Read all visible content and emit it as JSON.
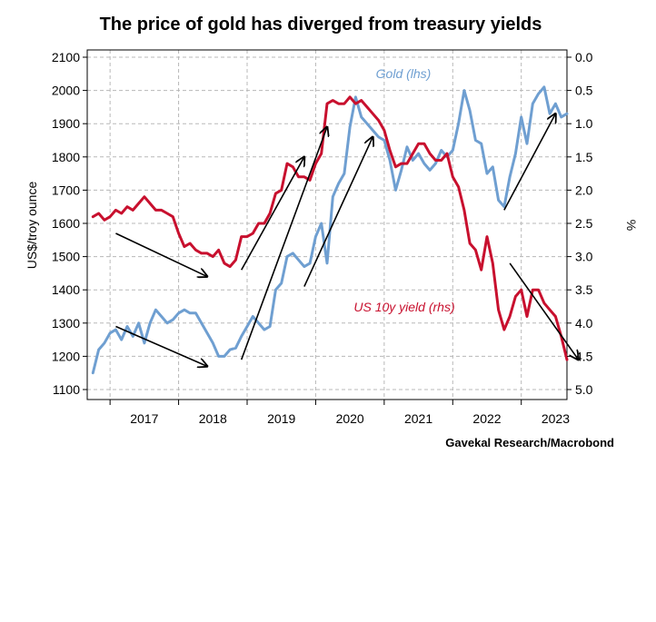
{
  "chart_data": {
    "type": "line",
    "title": "The price of gold has diverged from treasury yields",
    "source": "Gavekal Research/Macrobond",
    "x_ticks": [
      "2017",
      "2018",
      "2019",
      "2020",
      "2021",
      "2022",
      "2023"
    ],
    "x_range": [
      "2016-09",
      "2023-09"
    ],
    "grid": true,
    "y_left": {
      "label": "US$/troy ounce",
      "range": [
        1100,
        2100
      ],
      "ticks": [
        "1100",
        "1200",
        "1300",
        "1400",
        "1500",
        "1600",
        "1700",
        "1800",
        "1900",
        "2000",
        "2100"
      ]
    },
    "y_right": {
      "label": "%",
      "inverted": true,
      "range": [
        0.0,
        5.0
      ],
      "ticks": [
        "0.0",
        "0.5",
        "1.0",
        "1.5",
        "2.0",
        "2.5",
        "3.0",
        "3.5",
        "4.0",
        "4.5",
        "5.0"
      ]
    },
    "series": [
      {
        "name": "Gold (lhs)",
        "axis": "left",
        "color": "#6f9fd1",
        "x": [
          "2016-10",
          "2016-11",
          "2016-12",
          "2017-01",
          "2017-02",
          "2017-03",
          "2017-04",
          "2017-05",
          "2017-06",
          "2017-07",
          "2017-08",
          "2017-09",
          "2017-10",
          "2017-11",
          "2017-12",
          "2018-01",
          "2018-02",
          "2018-03",
          "2018-04",
          "2018-05",
          "2018-06",
          "2018-07",
          "2018-08",
          "2018-09",
          "2018-10",
          "2018-11",
          "2018-12",
          "2019-01",
          "2019-02",
          "2019-03",
          "2019-04",
          "2019-05",
          "2019-06",
          "2019-07",
          "2019-08",
          "2019-09",
          "2019-10",
          "2019-11",
          "2019-12",
          "2020-01",
          "2020-02",
          "2020-03",
          "2020-04",
          "2020-05",
          "2020-06",
          "2020-07",
          "2020-08",
          "2020-09",
          "2020-10",
          "2020-11",
          "2020-12",
          "2021-01",
          "2021-02",
          "2021-03",
          "2021-04",
          "2021-05",
          "2021-06",
          "2021-07",
          "2021-08",
          "2021-09",
          "2021-10",
          "2021-11",
          "2021-12",
          "2022-01",
          "2022-02",
          "2022-03",
          "2022-04",
          "2022-05",
          "2022-06",
          "2022-07",
          "2022-08",
          "2022-09",
          "2022-10",
          "2022-11",
          "2022-12",
          "2023-01",
          "2023-02",
          "2023-03",
          "2023-04",
          "2023-05",
          "2023-06",
          "2023-07",
          "2023-08",
          "2023-09"
        ],
        "values": [
          1150,
          1220,
          1240,
          1270,
          1280,
          1250,
          1290,
          1260,
          1300,
          1240,
          1300,
          1340,
          1320,
          1300,
          1310,
          1330,
          1340,
          1330,
          1330,
          1300,
          1270,
          1240,
          1200,
          1200,
          1220,
          1225,
          1260,
          1290,
          1320,
          1300,
          1280,
          1290,
          1400,
          1420,
          1500,
          1510,
          1490,
          1470,
          1480,
          1560,
          1600,
          1480,
          1680,
          1720,
          1750,
          1890,
          1980,
          1920,
          1900,
          1880,
          1860,
          1850,
          1790,
          1700,
          1760,
          1830,
          1790,
          1810,
          1780,
          1760,
          1780,
          1820,
          1800,
          1820,
          1900,
          2000,
          1940,
          1850,
          1840,
          1750,
          1770,
          1670,
          1650,
          1740,
          1810,
          1920,
          1840,
          1960,
          1990,
          2010,
          1930,
          1960,
          1920,
          1930
        ]
      },
      {
        "name": "US 10y yield (rhs)",
        "axis": "right",
        "color": "#c8102e",
        "x": [
          "2016-10",
          "2016-11",
          "2016-12",
          "2017-01",
          "2017-02",
          "2017-03",
          "2017-04",
          "2017-05",
          "2017-06",
          "2017-07",
          "2017-08",
          "2017-09",
          "2017-10",
          "2017-11",
          "2017-12",
          "2018-01",
          "2018-02",
          "2018-03",
          "2018-04",
          "2018-05",
          "2018-06",
          "2018-07",
          "2018-08",
          "2018-09",
          "2018-10",
          "2018-11",
          "2018-12",
          "2019-01",
          "2019-02",
          "2019-03",
          "2019-04",
          "2019-05",
          "2019-06",
          "2019-07",
          "2019-08",
          "2019-09",
          "2019-10",
          "2019-11",
          "2019-12",
          "2020-01",
          "2020-02",
          "2020-03",
          "2020-04",
          "2020-05",
          "2020-06",
          "2020-07",
          "2020-08",
          "2020-09",
          "2020-10",
          "2020-11",
          "2020-12",
          "2021-01",
          "2021-02",
          "2021-03",
          "2021-04",
          "2021-05",
          "2021-06",
          "2021-07",
          "2021-08",
          "2021-09",
          "2021-10",
          "2021-11",
          "2021-12",
          "2022-01",
          "2022-02",
          "2022-03",
          "2022-04",
          "2022-05",
          "2022-06",
          "2022-07",
          "2022-08",
          "2022-09",
          "2022-10",
          "2022-11",
          "2022-12",
          "2023-01",
          "2023-02",
          "2023-03",
          "2023-04",
          "2023-05",
          "2023-06",
          "2023-07",
          "2023-08",
          "2023-09"
        ],
        "values": [
          2.4,
          2.35,
          2.45,
          2.4,
          2.3,
          2.35,
          2.25,
          2.3,
          2.2,
          2.1,
          2.2,
          2.3,
          2.3,
          2.35,
          2.4,
          2.65,
          2.85,
          2.8,
          2.9,
          2.95,
          2.95,
          3.0,
          2.9,
          3.1,
          3.15,
          3.05,
          2.7,
          2.7,
          2.65,
          2.5,
          2.5,
          2.35,
          2.05,
          2.0,
          1.6,
          1.65,
          1.8,
          1.8,
          1.85,
          1.6,
          1.45,
          0.7,
          0.65,
          0.7,
          0.7,
          0.6,
          0.7,
          0.65,
          0.75,
          0.85,
          0.95,
          1.1,
          1.4,
          1.65,
          1.6,
          1.6,
          1.45,
          1.3,
          1.3,
          1.45,
          1.55,
          1.55,
          1.45,
          1.8,
          1.95,
          2.3,
          2.8,
          2.9,
          3.2,
          2.7,
          3.1,
          3.8,
          4.1,
          3.9,
          3.6,
          3.5,
          3.9,
          3.5,
          3.5,
          3.7,
          3.8,
          3.9,
          4.2,
          4.55
        ]
      }
    ],
    "annotations": [
      {
        "type": "arrow",
        "from": [
          "2017-02",
          1570
        ],
        "to": [
          "2018-06",
          1440
        ]
      },
      {
        "type": "arrow",
        "from": [
          "2017-02",
          1290
        ],
        "to": [
          "2018-06",
          1170
        ]
      },
      {
        "type": "arrow",
        "from": [
          "2018-12",
          1460
        ],
        "to": [
          "2019-11",
          1800
        ]
      },
      {
        "type": "arrow",
        "from": [
          "2018-12",
          1190
        ],
        "to": [
          "2020-03",
          1890
        ]
      },
      {
        "type": "arrow",
        "from": [
          "2019-11",
          1410
        ],
        "to": [
          "2020-11",
          1860
        ]
      },
      {
        "type": "arrow",
        "from": [
          "2022-10",
          1640
        ],
        "to": [
          "2023-07",
          1930
        ]
      },
      {
        "type": "arrow",
        "from": [
          "2022-11",
          1480
        ],
        "to": [
          "2023-11",
          1190
        ]
      }
    ]
  }
}
